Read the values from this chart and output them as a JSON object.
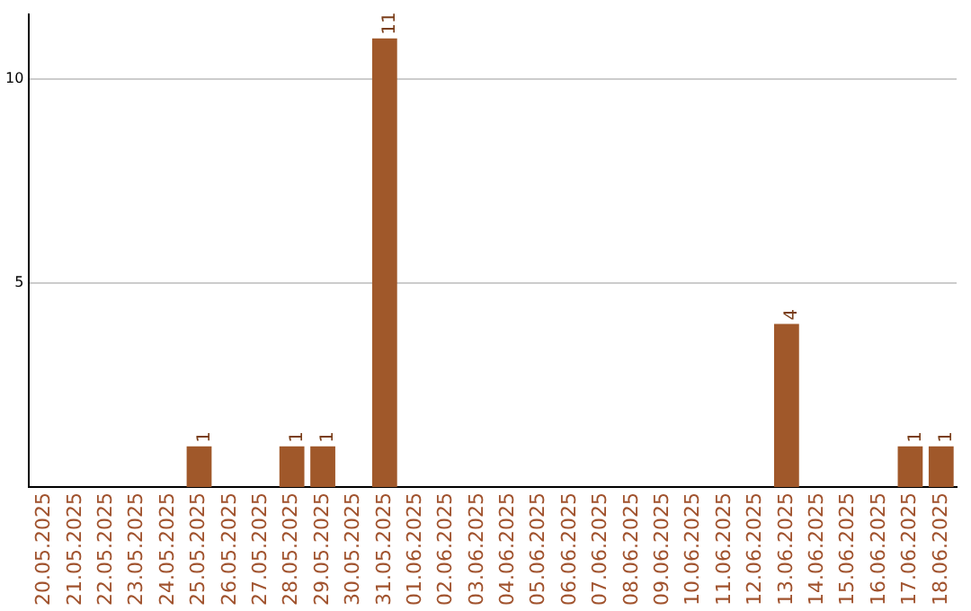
{
  "chart_data": {
    "type": "bar",
    "categories": [
      "20.05.2025",
      "21.05.2025",
      "22.05.2025",
      "23.05.2025",
      "24.05.2025",
      "25.05.2025",
      "26.05.2025",
      "27.05.2025",
      "28.05.2025",
      "29.05.2025",
      "30.05.2025",
      "31.05.2025",
      "01.06.2025",
      "02.06.2025",
      "03.06.2025",
      "04.06.2025",
      "05.06.2025",
      "06.06.2025",
      "07.06.2025",
      "08.06.2025",
      "09.06.2025",
      "10.06.2025",
      "11.06.2025",
      "12.06.2025",
      "13.06.2025",
      "14.06.2025",
      "15.06.2025",
      "16.06.2025",
      "17.06.2025",
      "18.06.2025"
    ],
    "values": [
      0,
      0,
      0,
      0,
      0,
      1,
      0,
      0,
      1,
      1,
      0,
      11,
      0,
      0,
      0,
      0,
      0,
      0,
      0,
      0,
      0,
      0,
      0,
      0,
      4,
      0,
      0,
      0,
      1,
      1
    ],
    "value_labels": [
      null,
      null,
      null,
      null,
      null,
      "1",
      null,
      null,
      "1",
      "1",
      null,
      "11",
      null,
      null,
      null,
      null,
      null,
      null,
      null,
      null,
      null,
      null,
      null,
      null,
      "4",
      null,
      null,
      null,
      "1",
      "1"
    ],
    "color": "#a0582a",
    "ylim": [
      0,
      11.6
    ],
    "yticks": [
      5,
      10
    ],
    "grid": "y",
    "legend": false
  }
}
